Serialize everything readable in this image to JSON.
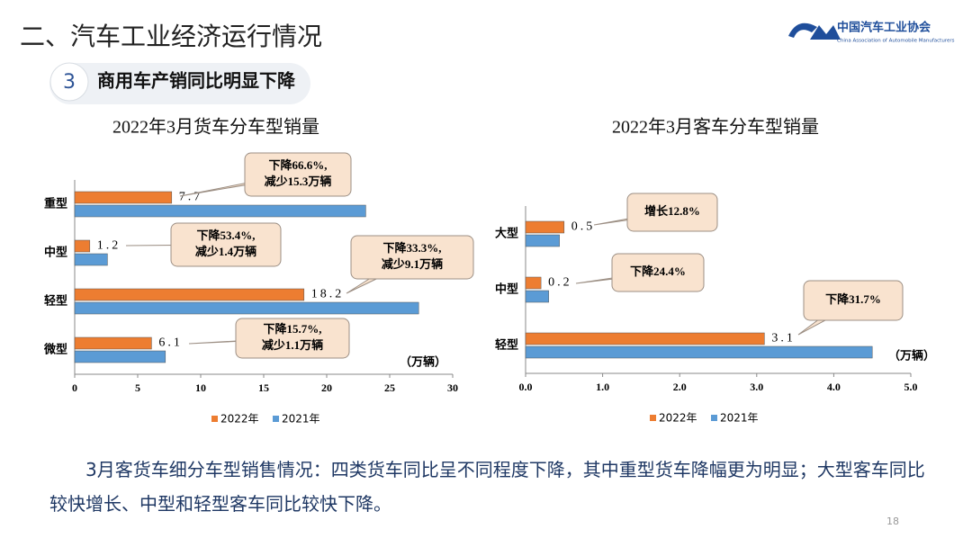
{
  "header": {
    "title": "二、汽车工业经济运行情况",
    "section_number": "3",
    "section_title": "商用车产销同比明显下降",
    "logo_name": "中国汽车工业协会",
    "logo_subtitle": "China Association of Automobile Manufacturers"
  },
  "body_text": "3月客货车细分车型销售情况：四类货车同比呈不同程度下降，其中重型货车降幅更为明显；大型客车同比较快增长、中型和轻型客车同比较快下降。",
  "page_number": "18",
  "chart_data": [
    {
      "type": "bar",
      "orientation": "horizontal",
      "title": "2022年3月货车分车型销量",
      "unit_label": "（万辆）",
      "categories": [
        "重型",
        "中型",
        "轻型",
        "微型"
      ],
      "series": [
        {
          "name": "2022年",
          "color": "#ED7D31",
          "values": [
            7.7,
            1.2,
            18.2,
            6.1
          ]
        },
        {
          "name": "2021年",
          "color": "#5B9BD5",
          "values": [
            23.1,
            2.6,
            27.3,
            7.2
          ]
        }
      ],
      "annotations": [
        [
          "下降66.6%,",
          "减少15.3万辆"
        ],
        [
          "下降53.4%,",
          "减少1.4万辆"
        ],
        [
          "下降33.3%,",
          "减少9.1万辆"
        ],
        [
          "下降15.7%,",
          "减少1.1万辆"
        ]
      ],
      "xlim": [
        0,
        30
      ],
      "xticks": [
        0,
        5,
        10,
        15,
        20,
        25,
        30
      ],
      "legend": "bottom"
    },
    {
      "type": "bar",
      "orientation": "horizontal",
      "title": "2022年3月客车分车型销量",
      "unit_label": "（万辆）",
      "categories": [
        "大型",
        "中型",
        "轻型"
      ],
      "series": [
        {
          "name": "2022年",
          "color": "#ED7D31",
          "values": [
            0.5,
            0.2,
            3.1
          ]
        },
        {
          "name": "2021年",
          "color": "#5B9BD5",
          "values": [
            0.44,
            0.3,
            4.5
          ]
        }
      ],
      "annotations": [
        [
          "增长12.8%"
        ],
        [
          "下降24.4%"
        ],
        [
          "下降31.7%"
        ]
      ],
      "xlim": [
        0,
        5
      ],
      "xticks": [
        {
          "value": 0,
          "label": "0.0"
        },
        {
          "value": 1,
          "label": "1.0"
        },
        {
          "value": 2,
          "label": "2.0"
        },
        {
          "value": 3,
          "label": "3.0"
        },
        {
          "value": 4,
          "label": "4.0"
        },
        {
          "value": 5,
          "label": "5.0"
        }
      ],
      "legend": "bottom"
    }
  ]
}
